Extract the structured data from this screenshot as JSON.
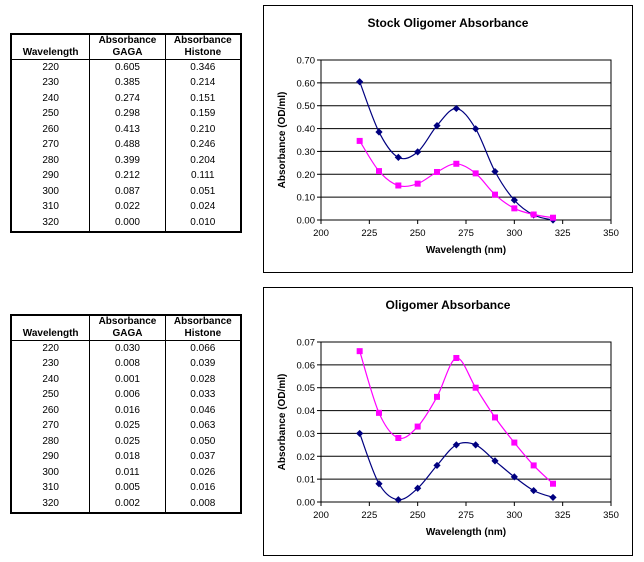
{
  "tables": [
    {
      "headers": [
        "Wavelength",
        "Absorbance GAGA",
        "Absorbance Histone"
      ],
      "header_lines": [
        [
          "Wavelength"
        ],
        [
          "Absorbance",
          "GAGA"
        ],
        [
          "Absorbance",
          "Histone"
        ]
      ],
      "rows": [
        [
          "220",
          "0.605",
          "0.346"
        ],
        [
          "230",
          "0.385",
          "0.214"
        ],
        [
          "240",
          "0.274",
          "0.151"
        ],
        [
          "250",
          "0.298",
          "0.159"
        ],
        [
          "260",
          "0.413",
          "0.210"
        ],
        [
          "270",
          "0.488",
          "0.246"
        ],
        [
          "280",
          "0.399",
          "0.204"
        ],
        [
          "290",
          "0.212",
          "0.111"
        ],
        [
          "300",
          "0.087",
          "0.051"
        ],
        [
          "310",
          "0.022",
          "0.024"
        ],
        [
          "320",
          "0.000",
          "0.010"
        ]
      ]
    },
    {
      "headers": [
        "Wavelength",
        "Absorbance GAGA",
        "Absorbance Histone"
      ],
      "header_lines": [
        [
          "Wavelength"
        ],
        [
          "Absorbance",
          "GAGA"
        ],
        [
          "Absorbance",
          "Histone"
        ]
      ],
      "rows": [
        [
          "220",
          "0.030",
          "0.066"
        ],
        [
          "230",
          "0.008",
          "0.039"
        ],
        [
          "240",
          "0.001",
          "0.028"
        ],
        [
          "250",
          "0.006",
          "0.033"
        ],
        [
          "260",
          "0.016",
          "0.046"
        ],
        [
          "270",
          "0.025",
          "0.063"
        ],
        [
          "280",
          "0.025",
          "0.050"
        ],
        [
          "290",
          "0.018",
          "0.037"
        ],
        [
          "300",
          "0.011",
          "0.026"
        ],
        [
          "310",
          "0.005",
          "0.016"
        ],
        [
          "320",
          "0.002",
          "0.008"
        ]
      ]
    }
  ],
  "chart_data": [
    {
      "type": "line",
      "title": "Stock Oligomer Absorbance",
      "xlabel": "Wavelength (nm)",
      "ylabel": "Absorbance (OD/ml)",
      "xlim": [
        200,
        350
      ],
      "ylim": [
        0,
        0.7
      ],
      "xticks": [
        200,
        225,
        250,
        275,
        300,
        325,
        350
      ],
      "xtick_labels": [
        "200",
        "225",
        "250",
        "275",
        "300",
        "325",
        "350"
      ],
      "yticks": [
        0,
        0.1,
        0.2,
        0.3,
        0.4,
        0.5,
        0.6,
        0.7
      ],
      "ytick_labels": [
        "0.00",
        "0.10",
        "0.20",
        "0.30",
        "0.40",
        "0.50",
        "0.60",
        "0.70"
      ],
      "grid": "horizontal",
      "legend": "none",
      "smooth": true,
      "x": [
        220,
        230,
        240,
        250,
        260,
        270,
        280,
        290,
        300,
        310,
        320
      ],
      "series": [
        {
          "values": [
            0.605,
            0.385,
            0.274,
            0.298,
            0.413,
            0.488,
            0.399,
            0.212,
            0.087,
            0.022,
            0.0
          ],
          "color": "#000080",
          "marker": "diamond"
        },
        {
          "values": [
            0.346,
            0.214,
            0.151,
            0.159,
            0.21,
            0.246,
            0.204,
            0.111,
            0.051,
            0.024,
            0.01
          ],
          "color": "#ff00ff",
          "marker": "square"
        }
      ]
    },
    {
      "type": "line",
      "title": "Oligomer Absorbance",
      "xlabel": "Wavelength (nm)",
      "ylabel": "Absorbance (OD/ml)",
      "xlim": [
        200,
        350
      ],
      "ylim": [
        0,
        0.07
      ],
      "xticks": [
        200,
        225,
        250,
        275,
        300,
        325,
        350
      ],
      "xtick_labels": [
        "200",
        "225",
        "250",
        "275",
        "300",
        "325",
        "350"
      ],
      "yticks": [
        0,
        0.01,
        0.02,
        0.03,
        0.04,
        0.05,
        0.06,
        0.07
      ],
      "ytick_labels": [
        "0.00",
        "0.01",
        "0.02",
        "0.03",
        "0.04",
        "0.05",
        "0.06",
        "0.07"
      ],
      "grid": "horizontal",
      "legend": "none",
      "smooth": true,
      "x": [
        220,
        230,
        240,
        250,
        260,
        270,
        280,
        290,
        300,
        310,
        320
      ],
      "series": [
        {
          "values": [
            0.03,
            0.008,
            0.001,
            0.006,
            0.016,
            0.025,
            0.025,
            0.018,
            0.011,
            0.005,
            0.002
          ],
          "color": "#000080",
          "marker": "diamond"
        },
        {
          "values": [
            0.066,
            0.039,
            0.028,
            0.033,
            0.046,
            0.063,
            0.05,
            0.037,
            0.026,
            0.016,
            0.008
          ],
          "color": "#ff00ff",
          "marker": "square"
        }
      ]
    }
  ]
}
